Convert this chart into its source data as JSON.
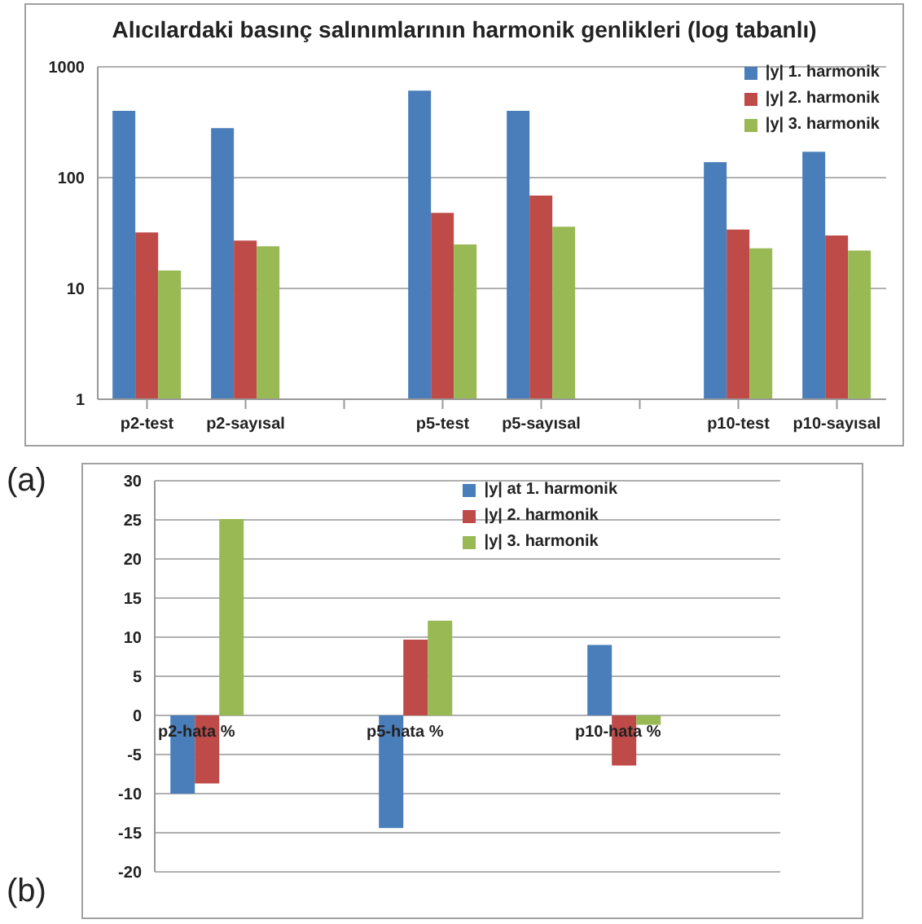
{
  "chart_data": [
    {
      "type": "bar",
      "title": "Alıcılardaki basınç salınımlarının harmonik genlikleri (log tabanlı)",
      "categories": [
        "p2-test",
        "p2-sayısal",
        null,
        "p5-test",
        "p5-sayısal",
        null,
        "p10-test",
        "p10-sayısal"
      ],
      "series": [
        {
          "name": "|y| 1. harmonik",
          "color": "#4a7ebb",
          "values": [
            400,
            280,
            null,
            610,
            400,
            null,
            138,
            171
          ]
        },
        {
          "name": "|y| 2. harmonik",
          "color": "#be4b48",
          "values": [
            32,
            27,
            null,
            48,
            69,
            null,
            34,
            30
          ]
        },
        {
          "name": "|y| 3. harmonik",
          "color": "#98b954",
          "values": [
            14.5,
            24,
            null,
            25,
            36,
            null,
            23,
            22
          ]
        }
      ],
      "log": true,
      "ylim": [
        1,
        1000
      ],
      "yticks": [
        1,
        10,
        100,
        1000
      ],
      "grid": "y",
      "legend": "top right",
      "annotations": [
        "(a)"
      ]
    },
    {
      "type": "bar",
      "categories": [
        "p2-hata %",
        null,
        "p5-hata %",
        null,
        "p10-hata %",
        null
      ],
      "series": [
        {
          "name": "|y| at 1. harmonik",
          "color": "#4a7ebb",
          "values": [
            -10,
            null,
            -14.4,
            null,
            9,
            null
          ]
        },
        {
          "name": "|y| 2. harmonik",
          "color": "#be4b48",
          "values": [
            -8.7,
            null,
            9.7,
            null,
            -6.4,
            null
          ]
        },
        {
          "name": "|y| 3. harmonik",
          "color": "#98b954",
          "values": [
            25.1,
            null,
            12.1,
            null,
            -1.2,
            null
          ]
        }
      ],
      "ylim": [
        -20,
        30
      ],
      "yticks": [
        -20,
        -15,
        -10,
        -5,
        0,
        5,
        10,
        15,
        20,
        25,
        30
      ],
      "grid": "y",
      "legend": "top right",
      "annotations": [
        "(b)"
      ]
    }
  ]
}
